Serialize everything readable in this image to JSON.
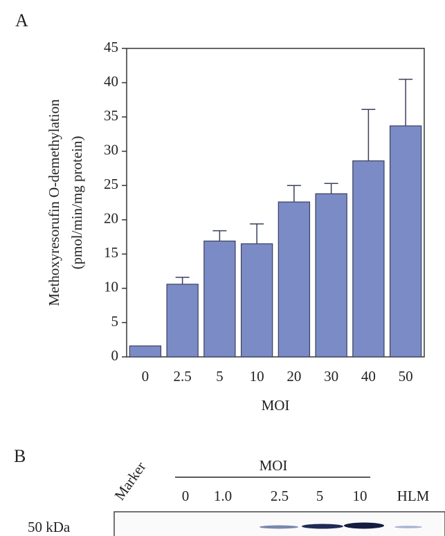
{
  "chart_data": {
    "type": "bar",
    "panel_label": "A",
    "ylabel": [
      "Methoxyresorufin O-demethylation",
      "(pmol/min/mg protein)"
    ],
    "xlabel": "MOI",
    "categories": [
      "0",
      "2.5",
      "5",
      "10",
      "20",
      "30",
      "40",
      "50"
    ],
    "values": [
      1.6,
      10.6,
      16.9,
      16.5,
      22.6,
      23.8,
      28.6,
      33.7
    ],
    "errors": [
      0,
      1.0,
      1.5,
      2.9,
      2.4,
      1.5,
      7.5,
      6.8
    ],
    "color": "#7b8bc6",
    "ylim": [
      0,
      45
    ],
    "yticks": [
      0,
      5,
      10,
      15,
      20,
      25,
      30,
      35,
      40,
      45
    ]
  },
  "blot": {
    "panel_label": "B",
    "marker_label": "Marker",
    "group_label": "MOI",
    "lanes": [
      "0",
      "1.0",
      "2.5",
      "5",
      "10",
      "HLM"
    ],
    "size_label": "50 kDa"
  }
}
